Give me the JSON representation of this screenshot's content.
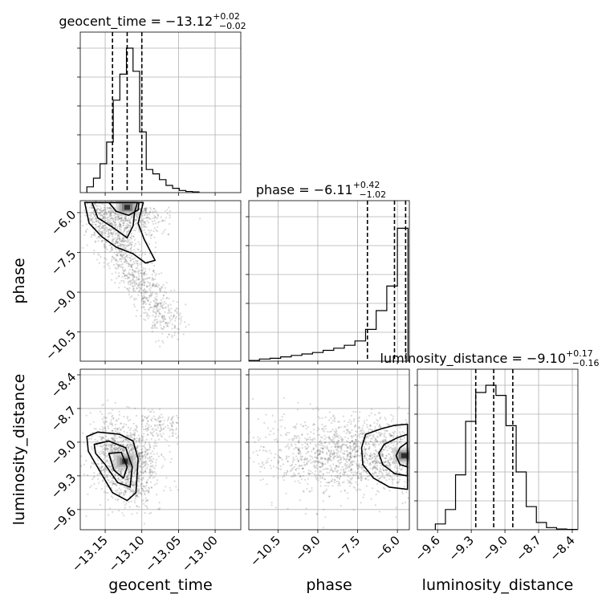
{
  "chart_data": {
    "type": "corner",
    "parameters": [
      "geocent_time",
      "phase",
      "luminosity_distance"
    ],
    "axis_labels": [
      "geocent_time",
      "phase",
      "luminosity_distance"
    ],
    "titles": [
      {
        "param": "geocent_time",
        "prefix": "geocent_time = ",
        "value": "−13.12",
        "plus": "+0.02",
        "minus": "−0.02"
      },
      {
        "param": "phase",
        "prefix": "phase = ",
        "value": "−6.11",
        "plus": "+0.42",
        "minus": "−1.02"
      },
      {
        "param": "luminosity_distance",
        "prefix": "luminosity_distance = ",
        "value": "−9.10",
        "plus": "+0.17",
        "minus": "−0.16"
      }
    ],
    "ranges": {
      "geocent_time": [
        -13.184,
        -12.965
      ],
      "phase": [
        -11.6,
        -5.55
      ],
      "luminosity_distance": [
        -9.78,
        -8.35
      ]
    },
    "ticks": {
      "geocent_time": [
        -13.15,
        -13.1,
        -13.05,
        -13.0
      ],
      "phase": [
        -10.5,
        -9.0,
        -7.5,
        -6.0
      ],
      "luminosity_distance": [
        -9.6,
        -9.3,
        -9.0,
        -8.7,
        -8.4
      ]
    },
    "tick_labels": {
      "geocent_time": [
        "−13.15",
        "−13.10",
        "−13.05",
        "−13.00"
      ],
      "phase": [
        "−10.5",
        "−9.0",
        "−7.5",
        "−6.0"
      ],
      "luminosity_distance": [
        "−9.6",
        "−9.3",
        "−9.0",
        "−8.7",
        "−8.4"
      ]
    },
    "quantiles": {
      "geocent_time": [
        -13.14,
        -13.12,
        -13.1
      ],
      "phase": [
        -7.13,
        -6.11,
        -5.69
      ],
      "luminosity_distance": [
        -9.26,
        -9.1,
        -8.93
      ]
    },
    "histograms": {
      "geocent_time": {
        "edges": [
          -13.175,
          -13.166,
          -13.157,
          -13.148,
          -13.139,
          -13.13,
          -13.121,
          -13.112,
          -13.103,
          -13.094,
          -13.085,
          -13.076,
          -13.067,
          -13.058,
          -13.049,
          -13.04,
          -13.031,
          -13.022
        ],
        "counts": [
          0.04,
          0.1,
          0.2,
          0.35,
          0.64,
          0.82,
          1.0,
          0.84,
          0.42,
          0.16,
          0.13,
          0.09,
          0.05,
          0.03,
          0.015,
          0.008,
          0.005
        ]
      },
      "phase": {
        "edges": [
          -11.6,
          -11.2,
          -10.8,
          -10.4,
          -10.0,
          -9.6,
          -9.2,
          -8.8,
          -8.4,
          -8.0,
          -7.6,
          -7.2,
          -6.8,
          -6.4,
          -6.0,
          -5.6
        ],
        "counts": [
          0.005,
          0.015,
          0.02,
          0.03,
          0.04,
          0.05,
          0.06,
          0.075,
          0.09,
          0.11,
          0.14,
          0.22,
          0.35,
          0.52,
          0.92
        ]
      },
      "luminosity_distance": {
        "edges": [
          -9.62,
          -9.53,
          -9.44,
          -9.35,
          -9.26,
          -9.17,
          -9.08,
          -8.99,
          -8.9,
          -8.81,
          -8.72,
          -8.63,
          -8.54,
          -8.45,
          -8.36
        ],
        "counts": [
          0.04,
          0.14,
          0.38,
          0.75,
          0.95,
          1.0,
          0.93,
          0.72,
          0.4,
          0.16,
          0.05,
          0.015,
          0.005,
          0.002
        ]
      }
    },
    "pairs": [
      {
        "x": "geocent_time",
        "y": "phase",
        "density_peak": [
          -13.12,
          -5.8
        ],
        "contours": [
          [
            [
              -13.178,
              -5.62
            ],
            [
              -13.172,
              -6.4
            ],
            [
              -13.155,
              -6.9
            ],
            [
              -13.135,
              -7.3
            ],
            [
              -13.112,
              -7.55
            ],
            [
              -13.095,
              -7.9
            ],
            [
              -13.082,
              -7.8
            ],
            [
              -13.097,
              -7.0
            ],
            [
              -13.105,
              -6.4
            ],
            [
              -13.098,
              -5.62
            ]
          ],
          [
            [
              -13.168,
              -5.62
            ],
            [
              -13.16,
              -6.2
            ],
            [
              -13.14,
              -6.55
            ],
            [
              -13.12,
              -6.95
            ],
            [
              -13.112,
              -6.5
            ],
            [
              -13.11,
              -6.0
            ],
            [
              -13.106,
              -5.62
            ]
          ],
          [
            [
              -13.145,
              -5.62
            ],
            [
              -13.135,
              -5.95
            ],
            [
              -13.118,
              -6.1
            ],
            [
              -13.105,
              -5.9
            ],
            [
              -13.104,
              -5.62
            ]
          ]
        ]
      },
      {
        "x": "geocent_time",
        "y": "luminosity_distance",
        "density_peak": [
          -13.123,
          -9.17
        ],
        "contours": [
          [
            [
              -13.175,
              -8.95
            ],
            [
              -13.16,
              -8.91
            ],
            [
              -13.13,
              -8.93
            ],
            [
              -13.112,
              -8.99
            ],
            [
              -13.105,
              -9.15
            ],
            [
              -13.108,
              -9.45
            ],
            [
              -13.12,
              -9.52
            ],
            [
              -13.14,
              -9.45
            ],
            [
              -13.158,
              -9.25
            ],
            [
              -13.173,
              -9.08
            ]
          ],
          [
            [
              -13.165,
              -9.02
            ],
            [
              -13.145,
              -8.99
            ],
            [
              -13.122,
              -9.05
            ],
            [
              -13.113,
              -9.22
            ],
            [
              -13.116,
              -9.4
            ],
            [
              -13.133,
              -9.36
            ],
            [
              -13.15,
              -9.2
            ],
            [
              -13.163,
              -9.1
            ]
          ],
          [
            [
              -13.145,
              -9.1
            ],
            [
              -13.128,
              -9.09
            ],
            [
              -13.12,
              -9.22
            ],
            [
              -13.125,
              -9.32
            ],
            [
              -13.138,
              -9.25
            ]
          ]
        ]
      },
      {
        "x": "phase",
        "y": "luminosity_distance",
        "density_peak": [
          -5.75,
          -9.12
        ],
        "contours": [
          [
            [
              -5.62,
              -8.84
            ],
            [
              -6.1,
              -8.85
            ],
            [
              -6.6,
              -8.88
            ],
            [
              -7.2,
              -8.93
            ],
            [
              -7.35,
              -9.05
            ],
            [
              -7.3,
              -9.2
            ],
            [
              -6.9,
              -9.32
            ],
            [
              -6.3,
              -9.4
            ],
            [
              -5.62,
              -9.42
            ]
          ],
          [
            [
              -5.62,
              -8.93
            ],
            [
              -6.0,
              -8.96
            ],
            [
              -6.5,
              -9.02
            ],
            [
              -6.7,
              -9.1
            ],
            [
              -6.55,
              -9.2
            ],
            [
              -6.1,
              -9.28
            ],
            [
              -5.62,
              -9.3
            ]
          ],
          [
            [
              -5.62,
              -9.0
            ],
            [
              -5.9,
              -9.05
            ],
            [
              -6.05,
              -9.12
            ],
            [
              -5.9,
              -9.2
            ],
            [
              -5.62,
              -9.22
            ]
          ]
        ]
      }
    ]
  }
}
